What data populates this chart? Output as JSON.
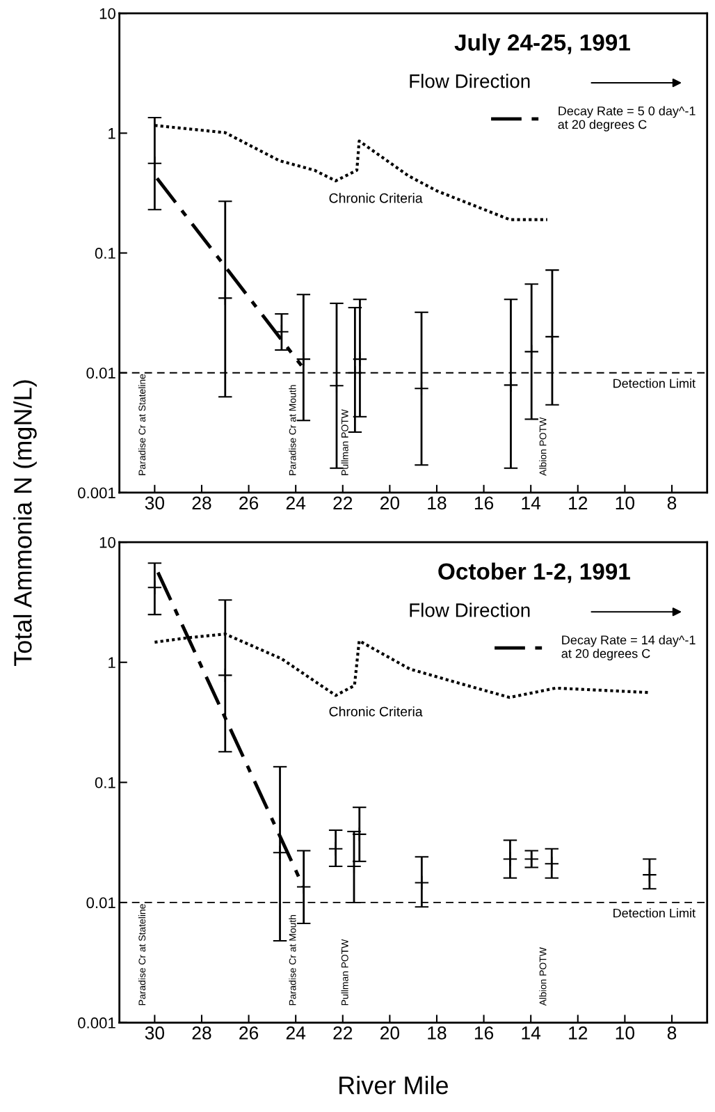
{
  "chart_data": [
    {
      "type": "scatter",
      "title": "July 24-25, 1991",
      "ylabel": "Total Ammonia N (mgN/L)",
      "log": "y",
      "xlim": [
        31.5,
        6.5
      ],
      "xticks": [
        30,
        28,
        26,
        24,
        22,
        20,
        18,
        16,
        14,
        12,
        10,
        8
      ],
      "ylim": [
        0.001,
        10
      ],
      "yticks": [
        0.001,
        0.01,
        0.1,
        1,
        10
      ],
      "grid": false,
      "legend": "top right",
      "series": [
        {
          "color": "#000000",
          "marker": "cross",
          "x": [
            30,
            27,
            24.6,
            23.67,
            22.26,
            21.48,
            21.27,
            18.65,
            14.85,
            13.97,
            13.09
          ],
          "values": [
            0.56,
            0.042,
            0.022,
            0.013,
            0.0078,
            0.01,
            0.013,
            0.0074,
            0.0079,
            0.015,
            0.02
          ],
          "errors": [
            [
              0.23,
              1.35
            ],
            [
              0.0063,
              0.27
            ],
            [
              0.0155,
              0.031
            ],
            [
              0.004,
              0.045
            ],
            [
              0.0016,
              0.038
            ],
            [
              0.0032,
              0.035
            ],
            [
              0.0043,
              0.041
            ],
            [
              0.0017,
              0.032
            ],
            [
              0.0016,
              0.041
            ],
            [
              0.0041,
              0.055
            ],
            [
              0.0054,
              0.072
            ]
          ]
        },
        {
          "type": "line",
          "color": "#000000",
          "line_style": "dotted",
          "x": [
            30,
            27,
            24.7,
            23.2,
            22.3,
            21.4,
            21.3,
            19.2,
            18,
            14.9,
            13.3
          ],
          "values": [
            1.16,
            1.01,
            0.59,
            0.49,
            0.4,
            0.49,
            0.86,
            0.44,
            0.33,
            0.19,
            0.19
          ]
        },
        {
          "type": "line",
          "color": "#000000",
          "line_style": "dashdot",
          "name": "Decay Rate = 5 0 day^-1\nat 20 degrees C",
          "x": [
            29.9,
            23.76
          ],
          "values": [
            0.42,
            0.0115
          ]
        }
      ],
      "ref_lines": [
        {
          "axis": "y",
          "value": 0.01,
          "label": "Detection Limit",
          "line_style": "dashed",
          "color": "#000000"
        }
      ],
      "annotations": [
        "Flow Direction",
        "Chronic Criteria",
        "Paradise Cr at Stateline",
        "Paradise Cr at Mouth",
        "Pullman POTW",
        "Albion POTW"
      ]
    },
    {
      "type": "scatter",
      "title": "October 1-2, 1991",
      "xlabel": "River Mile",
      "log": "y",
      "xlim": [
        31.5,
        6.5
      ],
      "xticks": [
        30,
        28,
        26,
        24,
        22,
        20,
        18,
        16,
        14,
        12,
        10,
        8
      ],
      "ylim": [
        0.001,
        10
      ],
      "yticks": [
        0.001,
        0.01,
        0.1,
        1,
        10
      ],
      "grid": false,
      "legend": "top right",
      "series": [
        {
          "color": "#000000",
          "marker": "cross",
          "x": [
            30,
            27,
            24.67,
            23.66,
            22.3,
            21.52,
            21.29,
            18.64,
            14.88,
            13.97,
            13.11,
            8.95
          ],
          "values": [
            4.2,
            0.78,
            0.026,
            0.0135,
            0.028,
            0.02,
            0.037,
            0.0146,
            0.023,
            0.023,
            0.021,
            0.017
          ],
          "errors": [
            [
              2.5,
              6.7
            ],
            [
              0.18,
              3.3
            ],
            [
              0.0048,
              0.135
            ],
            [
              0.0067,
              0.027
            ],
            [
              0.02,
              0.04
            ],
            [
              0.01,
              0.039
            ],
            [
              0.022,
              0.062
            ],
            [
              0.0092,
              0.024
            ],
            [
              0.016,
              0.033
            ],
            [
              0.0196,
              0.027
            ],
            [
              0.016,
              0.028
            ],
            [
              0.013,
              0.023
            ]
          ]
        },
        {
          "type": "line",
          "color": "#000000",
          "line_style": "dotted",
          "x": [
            30,
            28.6,
            27,
            24.6,
            22.3,
            21.5,
            21.3,
            19.15,
            17.17,
            14.9,
            12.94,
            8.95
          ],
          "values": [
            1.47,
            1.6,
            1.72,
            1.07,
            0.53,
            0.64,
            1.51,
            0.88,
            0.68,
            0.51,
            0.61,
            0.56
          ]
        },
        {
          "type": "line",
          "color": "#000000",
          "line_style": "dashdot",
          "name": "Decay Rate = 14 day^-1\nat 20 degrees C",
          "x": [
            29.86,
            23.69
          ],
          "values": [
            5.6,
            0.0137
          ]
        }
      ],
      "ref_lines": [
        {
          "axis": "y",
          "value": 0.01,
          "label": "Detection Limit",
          "line_style": "dashed",
          "color": "#000000"
        }
      ],
      "annotations": [
        "Flow Direction",
        "Chronic Criteria",
        "Paradise Cr at Stateline",
        "Paradise Cr at Mouth",
        "Pullman POTW",
        "Albion POTW"
      ]
    }
  ]
}
